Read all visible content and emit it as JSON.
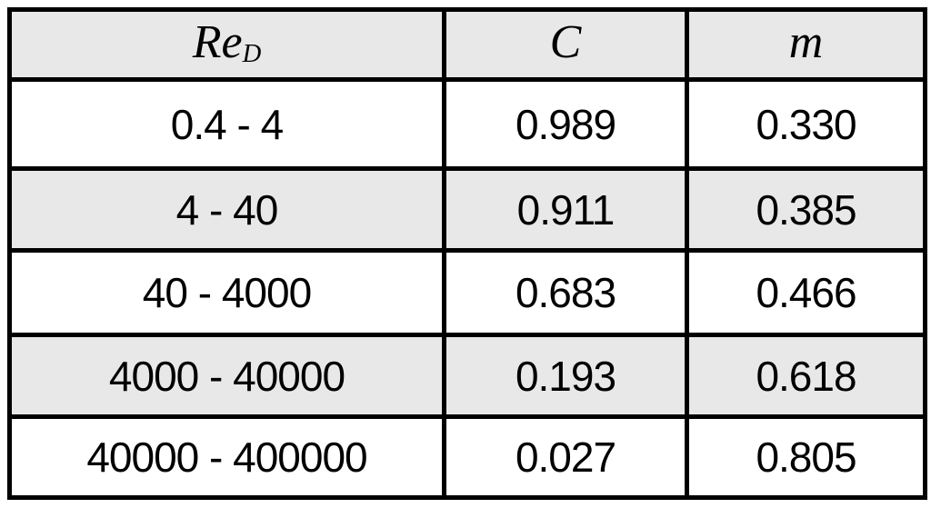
{
  "table": {
    "header": {
      "col1_main": "Re",
      "col1_sub": "D",
      "col2": "C",
      "col3": "m"
    },
    "rows": [
      {
        "range": "0.4 - 4",
        "c": "0.989",
        "m": "0.330"
      },
      {
        "range": "4 - 40",
        "c": "0.911",
        "m": "0.385"
      },
      {
        "range": "40 - 4000",
        "c": "0.683",
        "m": "0.466"
      },
      {
        "range": "4000 - 40000",
        "c": "0.193",
        "m": "0.618"
      },
      {
        "range": "40000 - 400000",
        "c": "0.027",
        "m": "0.805"
      }
    ],
    "colors": {
      "shaded_bg": "#e8e8e8",
      "border": "#000000",
      "text": "#000000"
    }
  }
}
